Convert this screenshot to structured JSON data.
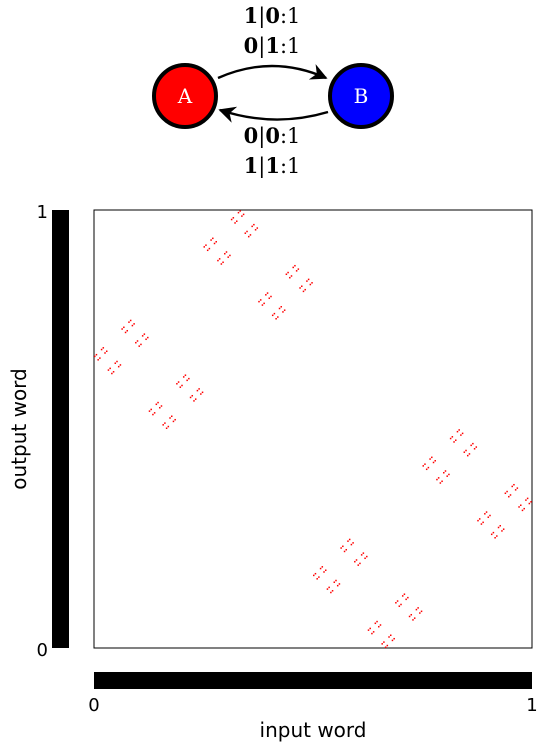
{
  "automaton": {
    "states": [
      {
        "id": "A",
        "label": "A",
        "color": "#ff0000"
      },
      {
        "id": "B",
        "label": "B",
        "color": "#0000ff"
      }
    ],
    "transitions": [
      {
        "from": "A",
        "to": "B",
        "labels": [
          {
            "in": "1",
            "out": "0",
            "weight": "1"
          },
          {
            "in": "0",
            "out": "1",
            "weight": "1"
          }
        ]
      },
      {
        "from": "B",
        "to": "A",
        "labels": [
          {
            "in": "0",
            "out": "0",
            "weight": "1"
          },
          {
            "in": "1",
            "out": "1",
            "weight": "1"
          }
        ]
      }
    ]
  },
  "plot": {
    "xlabel": "input word",
    "ylabel": "output word",
    "x_ticks": [
      "0",
      "1"
    ],
    "y_ticks": [
      "0",
      "1"
    ],
    "xlim": [
      0,
      1
    ],
    "ylim": [
      0,
      1
    ],
    "point_colors": {
      "A": "#ff0000",
      "B": "#0000ff"
    },
    "encoding": "binary expansion of the word, depth 8",
    "depth": 8
  }
}
